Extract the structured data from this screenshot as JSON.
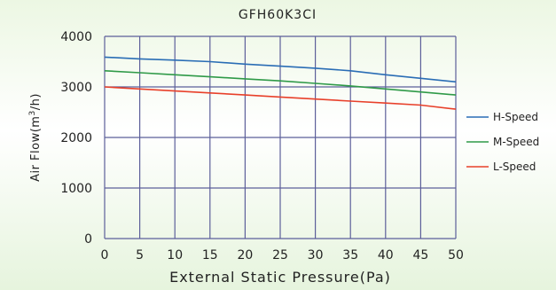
{
  "chart_data": {
    "type": "line",
    "title": "GFH60K3CI",
    "xlabel": "External Static Pressure(Pa)",
    "ylabel_prefix": "Air Flow(m",
    "ylabel_sup": "3",
    "ylabel_suffix": "/h)",
    "x": [
      0,
      5,
      10,
      15,
      20,
      25,
      30,
      35,
      40,
      45,
      50
    ],
    "xlim": [
      0,
      50
    ],
    "ylim": [
      0,
      4000
    ],
    "yticks": [
      0,
      1000,
      2000,
      3000,
      4000
    ],
    "grid": true,
    "legend_position": "right",
    "series": [
      {
        "name": "H-Speed",
        "color": "#2a6db5",
        "values": [
          3590,
          3555,
          3530,
          3500,
          3450,
          3410,
          3370,
          3320,
          3240,
          3170,
          3100
        ]
      },
      {
        "name": "M-Speed",
        "color": "#2f9a48",
        "values": [
          3320,
          3280,
          3240,
          3200,
          3160,
          3120,
          3070,
          3020,
          2960,
          2900,
          2840
        ]
      },
      {
        "name": "L-Speed",
        "color": "#e8402a",
        "values": [
          3000,
          2960,
          2920,
          2880,
          2840,
          2800,
          2760,
          2720,
          2680,
          2640,
          2560
        ]
      }
    ]
  }
}
